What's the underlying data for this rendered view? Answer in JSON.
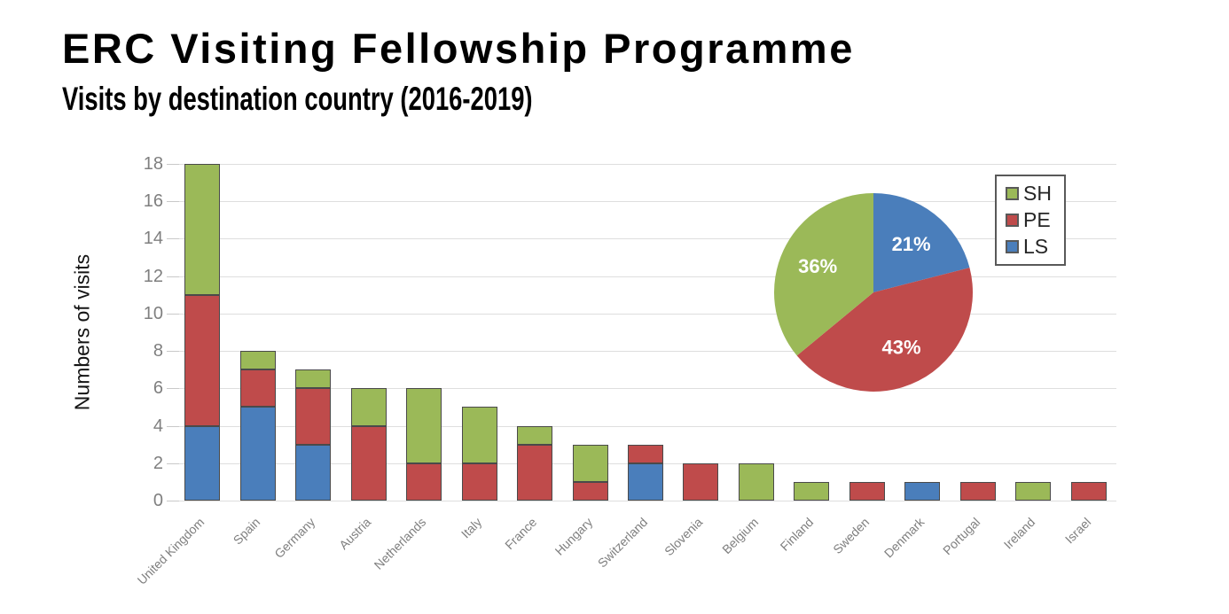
{
  "header": {
    "title": "ERC Visiting Fellowship Programme",
    "subtitle": "Visits by destination country (2016-2019)"
  },
  "colors": {
    "sh": "#9BB958",
    "pe": "#BF4B4B",
    "ls": "#4A7EBB",
    "grid": "#DEDEDE",
    "tick": "#C9C9C9",
    "axis_text": "#7F7F7F",
    "bar_border": "#4A4A4A",
    "legend_border": "#595959",
    "slice_label_text": "#FFFFFF"
  },
  "chart_data": [
    {
      "type": "bar",
      "stacked": true,
      "title": "",
      "xlabel": "",
      "ylabel": "Numbers of visits",
      "ylim": [
        0,
        18
      ],
      "ytick_step": 2,
      "yticks": [
        "0",
        "2",
        "4",
        "6",
        "8",
        "10",
        "12",
        "14",
        "16",
        "18"
      ],
      "grid": true,
      "categories": [
        "United Kingdom",
        "Spain",
        "Germany",
        "Austria",
        "Netherlands",
        "Italy",
        "France",
        "Hungary",
        "Switzerland",
        "Slovenia",
        "Belgium",
        "Finland",
        "Sweden",
        "Denmark",
        "Portugal",
        "Ireland",
        "Israel"
      ],
      "series": [
        {
          "name": "LS",
          "color_key": "ls",
          "values": [
            4,
            5,
            3,
            0,
            0,
            0,
            0,
            0,
            2,
            0,
            0,
            0,
            0,
            1,
            0,
            0,
            0
          ]
        },
        {
          "name": "PE",
          "color_key": "pe",
          "values": [
            7,
            2,
            3,
            4,
            2,
            2,
            3,
            1,
            1,
            2,
            0,
            0,
            1,
            0,
            1,
            0,
            1
          ]
        },
        {
          "name": "SH",
          "color_key": "sh",
          "values": [
            7,
            1,
            1,
            2,
            4,
            3,
            1,
            2,
            0,
            0,
            2,
            1,
            0,
            0,
            0,
            1,
            0
          ]
        }
      ]
    },
    {
      "type": "pie",
      "start_angle_deg": 0,
      "direction": "clockwise",
      "slices": [
        {
          "label": "LS",
          "value": 21,
          "text": "21%",
          "color_key": "ls"
        },
        {
          "label": "PE",
          "value": 43,
          "text": "43%",
          "color_key": "pe"
        },
        {
          "label": "SH",
          "value": 36,
          "text": "36%",
          "color_key": "sh"
        }
      ],
      "legend": {
        "position": "top-right",
        "entries": [
          {
            "label": "SH",
            "color_key": "sh"
          },
          {
            "label": "PE",
            "color_key": "pe"
          },
          {
            "label": "LS",
            "color_key": "ls"
          }
        ]
      }
    }
  ]
}
